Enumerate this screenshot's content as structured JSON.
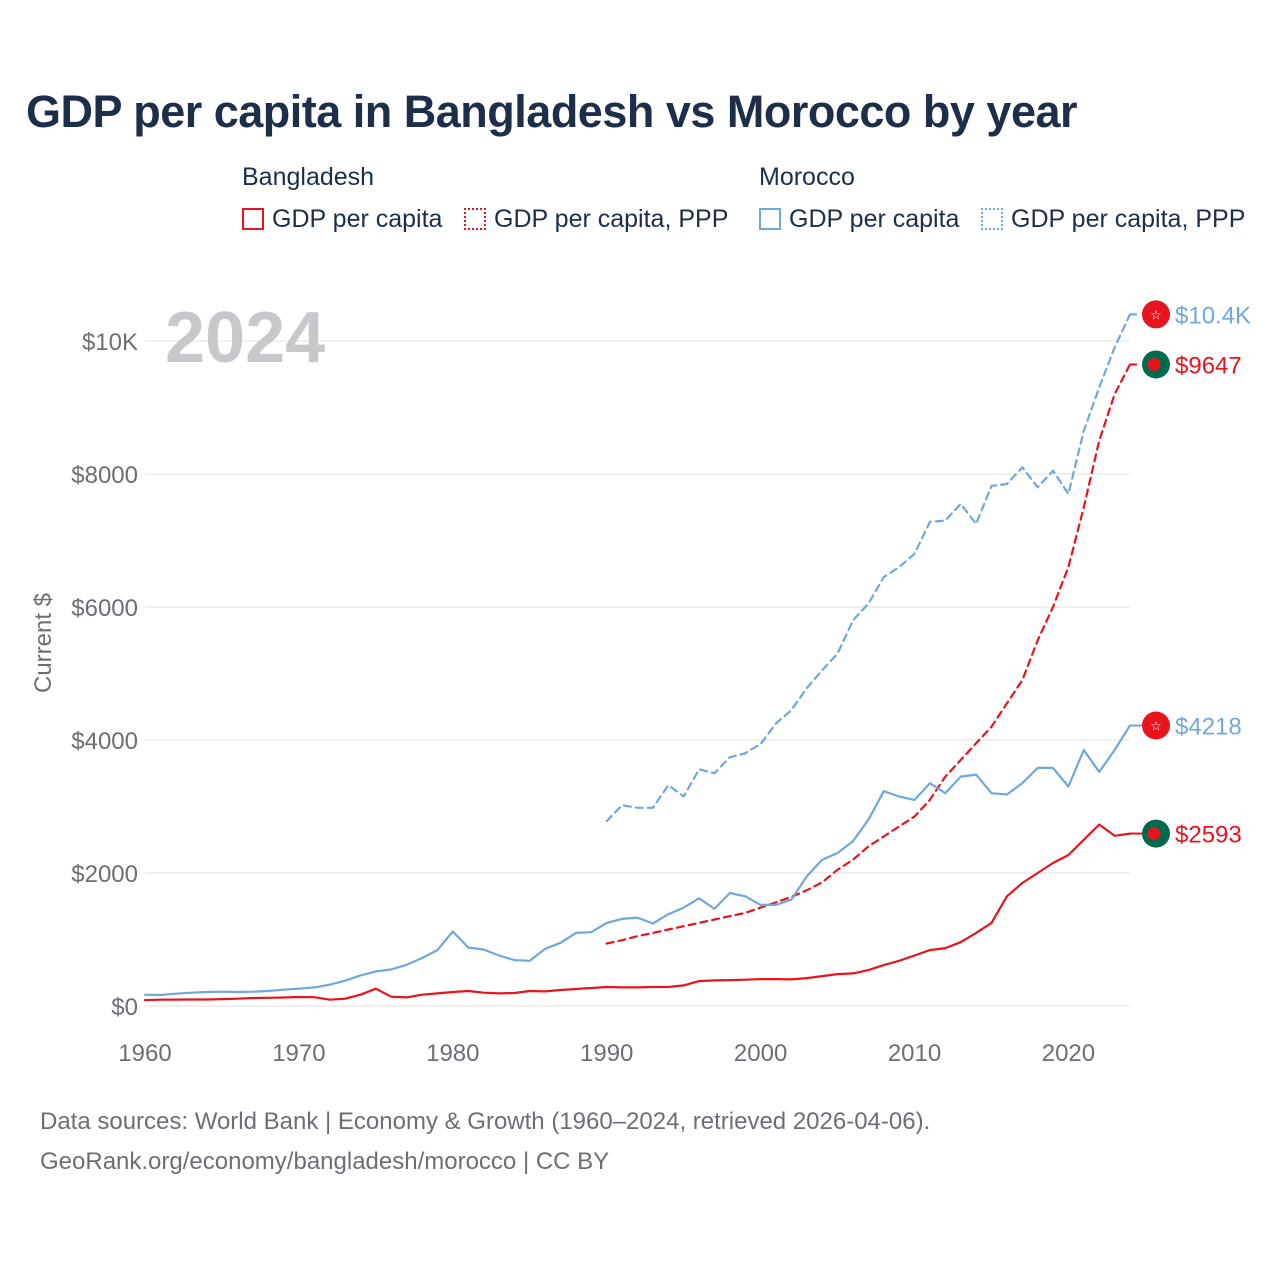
{
  "title": "GDP per capita in Bangladesh vs Morocco by year",
  "legend": {
    "groups": [
      {
        "name": "Bangladesh",
        "items": [
          "GDP per capita",
          "GDP per capita, PPP"
        ]
      },
      {
        "name": "Morocco",
        "items": [
          "GDP per capita",
          "GDP per capita, PPP"
        ]
      }
    ]
  },
  "colors": {
    "bangladesh": "#e8141c",
    "morocco": "#6fa8dc",
    "grid": "#e6e6e6",
    "axis_text": "#6b6f75",
    "year_label": "#c6c8cb"
  },
  "chart_data": {
    "type": "line",
    "title": "GDP per capita in Bangladesh vs Morocco by year",
    "xlabel": "",
    "ylabel": "Current $",
    "xlim": [
      1960,
      2024
    ],
    "ylim": [
      0,
      10400
    ],
    "x_ticks": [
      1960,
      1970,
      1980,
      1990,
      2000,
      2010,
      2020
    ],
    "x_tick_labels": [
      "1960",
      "1970",
      "1980",
      "1990",
      "2000",
      "2010",
      "2020"
    ],
    "y_ticks": [
      0,
      2000,
      4000,
      6000,
      8000,
      10000
    ],
    "y_tick_labels": [
      "$0",
      "$2000",
      "$4000",
      "$6000",
      "$8000",
      "$10K"
    ],
    "year_label": "2024",
    "series": [
      {
        "name": "Bangladesh GDP per capita",
        "country": "Bangladesh",
        "style": "solid",
        "color": "#e8141c",
        "x": [
          1960,
          1961,
          1962,
          1963,
          1964,
          1965,
          1966,
          1967,
          1968,
          1969,
          1970,
          1971,
          1972,
          1973,
          1974,
          1975,
          1976,
          1977,
          1978,
          1979,
          1980,
          1981,
          1982,
          1983,
          1984,
          1985,
          1986,
          1987,
          1988,
          1989,
          1990,
          1991,
          1992,
          1993,
          1994,
          1995,
          1996,
          1997,
          1998,
          1999,
          2000,
          2001,
          2002,
          2003,
          2004,
          2005,
          2006,
          2007,
          2008,
          2009,
          2010,
          2011,
          2012,
          2013,
          2014,
          2015,
          2016,
          2017,
          2018,
          2019,
          2020,
          2021,
          2022,
          2023,
          2024
        ],
        "values": [
          89,
          94,
          96,
          97,
          97,
          104,
          110,
          120,
          123,
          128,
          135,
          132,
          95,
          110,
          170,
          260,
          140,
          130,
          170,
          190,
          210,
          225,
          200,
          190,
          195,
          225,
          220,
          240,
          255,
          270,
          285,
          280,
          280,
          285,
          285,
          310,
          375,
          385,
          390,
          395,
          405,
          405,
          400,
          420,
          450,
          480,
          490,
          540,
          615,
          680,
          760,
          840,
          870,
          960,
          1100,
          1250,
          1650,
          1850,
          2000,
          2150,
          2270,
          2500,
          2730,
          2560,
          2593
        ],
        "end_label": "$2593"
      },
      {
        "name": "Bangladesh GDP per capita, PPP",
        "country": "Bangladesh",
        "style": "dashed",
        "color": "#e8141c",
        "x": [
          1990,
          1991,
          1992,
          1993,
          1994,
          1995,
          1996,
          1997,
          1998,
          1999,
          2000,
          2001,
          2002,
          2003,
          2004,
          2005,
          2006,
          2007,
          2008,
          2009,
          2010,
          2011,
          2012,
          2013,
          2014,
          2015,
          2016,
          2017,
          2018,
          2019,
          2020,
          2021,
          2022,
          2023,
          2024
        ],
        "values": [
          940,
          990,
          1050,
          1100,
          1150,
          1200,
          1250,
          1300,
          1350,
          1400,
          1480,
          1560,
          1640,
          1740,
          1860,
          2050,
          2200,
          2400,
          2550,
          2700,
          2850,
          3100,
          3450,
          3700,
          3950,
          4200,
          4550,
          4900,
          5500,
          6000,
          6600,
          7500,
          8500,
          9200,
          9647
        ],
        "end_label": "$9647"
      },
      {
        "name": "Morocco GDP per capita",
        "country": "Morocco",
        "style": "solid",
        "color": "#6fa8dc",
        "x": [
          1960,
          1961,
          1962,
          1963,
          1964,
          1965,
          1966,
          1967,
          1968,
          1969,
          1970,
          1971,
          1972,
          1973,
          1974,
          1975,
          1976,
          1977,
          1978,
          1979,
          1980,
          1981,
          1982,
          1983,
          1984,
          1985,
          1986,
          1987,
          1988,
          1989,
          1990,
          1991,
          1992,
          1993,
          1994,
          1995,
          1996,
          1997,
          1998,
          1999,
          2000,
          2001,
          2002,
          2003,
          2004,
          2005,
          2006,
          2007,
          2008,
          2009,
          2010,
          2011,
          2012,
          2013,
          2014,
          2015,
          2016,
          2017,
          2018,
          2019,
          2020,
          2021,
          2022,
          2023,
          2024
        ],
        "values": [
          170,
          165,
          185,
          200,
          210,
          215,
          210,
          215,
          225,
          245,
          260,
          280,
          320,
          380,
          460,
          520,
          550,
          620,
          720,
          840,
          1120,
          880,
          850,
          760,
          690,
          680,
          860,
          950,
          1100,
          1110,
          1250,
          1310,
          1330,
          1240,
          1380,
          1480,
          1620,
          1460,
          1700,
          1650,
          1520,
          1520,
          1600,
          1950,
          2200,
          2300,
          2480,
          2800,
          3230,
          3150,
          3100,
          3350,
          3200,
          3450,
          3480,
          3200,
          3180,
          3350,
          3580,
          3580,
          3300,
          3850,
          3520,
          3850,
          4218
        ],
        "end_label": "$4218"
      },
      {
        "name": "Morocco GDP per capita, PPP",
        "country": "Morocco",
        "style": "dashed",
        "color": "#6fa8dc",
        "x": [
          1990,
          1991,
          1992,
          1993,
          1994,
          1995,
          1996,
          1997,
          1998,
          1999,
          2000,
          2001,
          2002,
          2003,
          2004,
          2005,
          2006,
          2007,
          2008,
          2009,
          2010,
          2011,
          2012,
          2013,
          2014,
          2015,
          2016,
          2017,
          2018,
          2019,
          2020,
          2021,
          2022,
          2023,
          2024
        ],
        "values": [
          2780,
          3020,
          2980,
          2980,
          3320,
          3150,
          3560,
          3500,
          3740,
          3800,
          3940,
          4250,
          4450,
          4780,
          5050,
          5300,
          5800,
          6050,
          6450,
          6600,
          6800,
          7280,
          7300,
          7550,
          7250,
          7820,
          7850,
          8100,
          7800,
          8050,
          7700,
          8650,
          9300,
          9900,
          10400
        ],
        "end_label": "$10.4K"
      }
    ]
  },
  "footer": {
    "line1": "Data sources: World Bank | Economy & Growth (1960–2024, retrieved 2026-04-06).",
    "line2": "GeoRank.org/economy/bangladesh/morocco | CC BY"
  }
}
